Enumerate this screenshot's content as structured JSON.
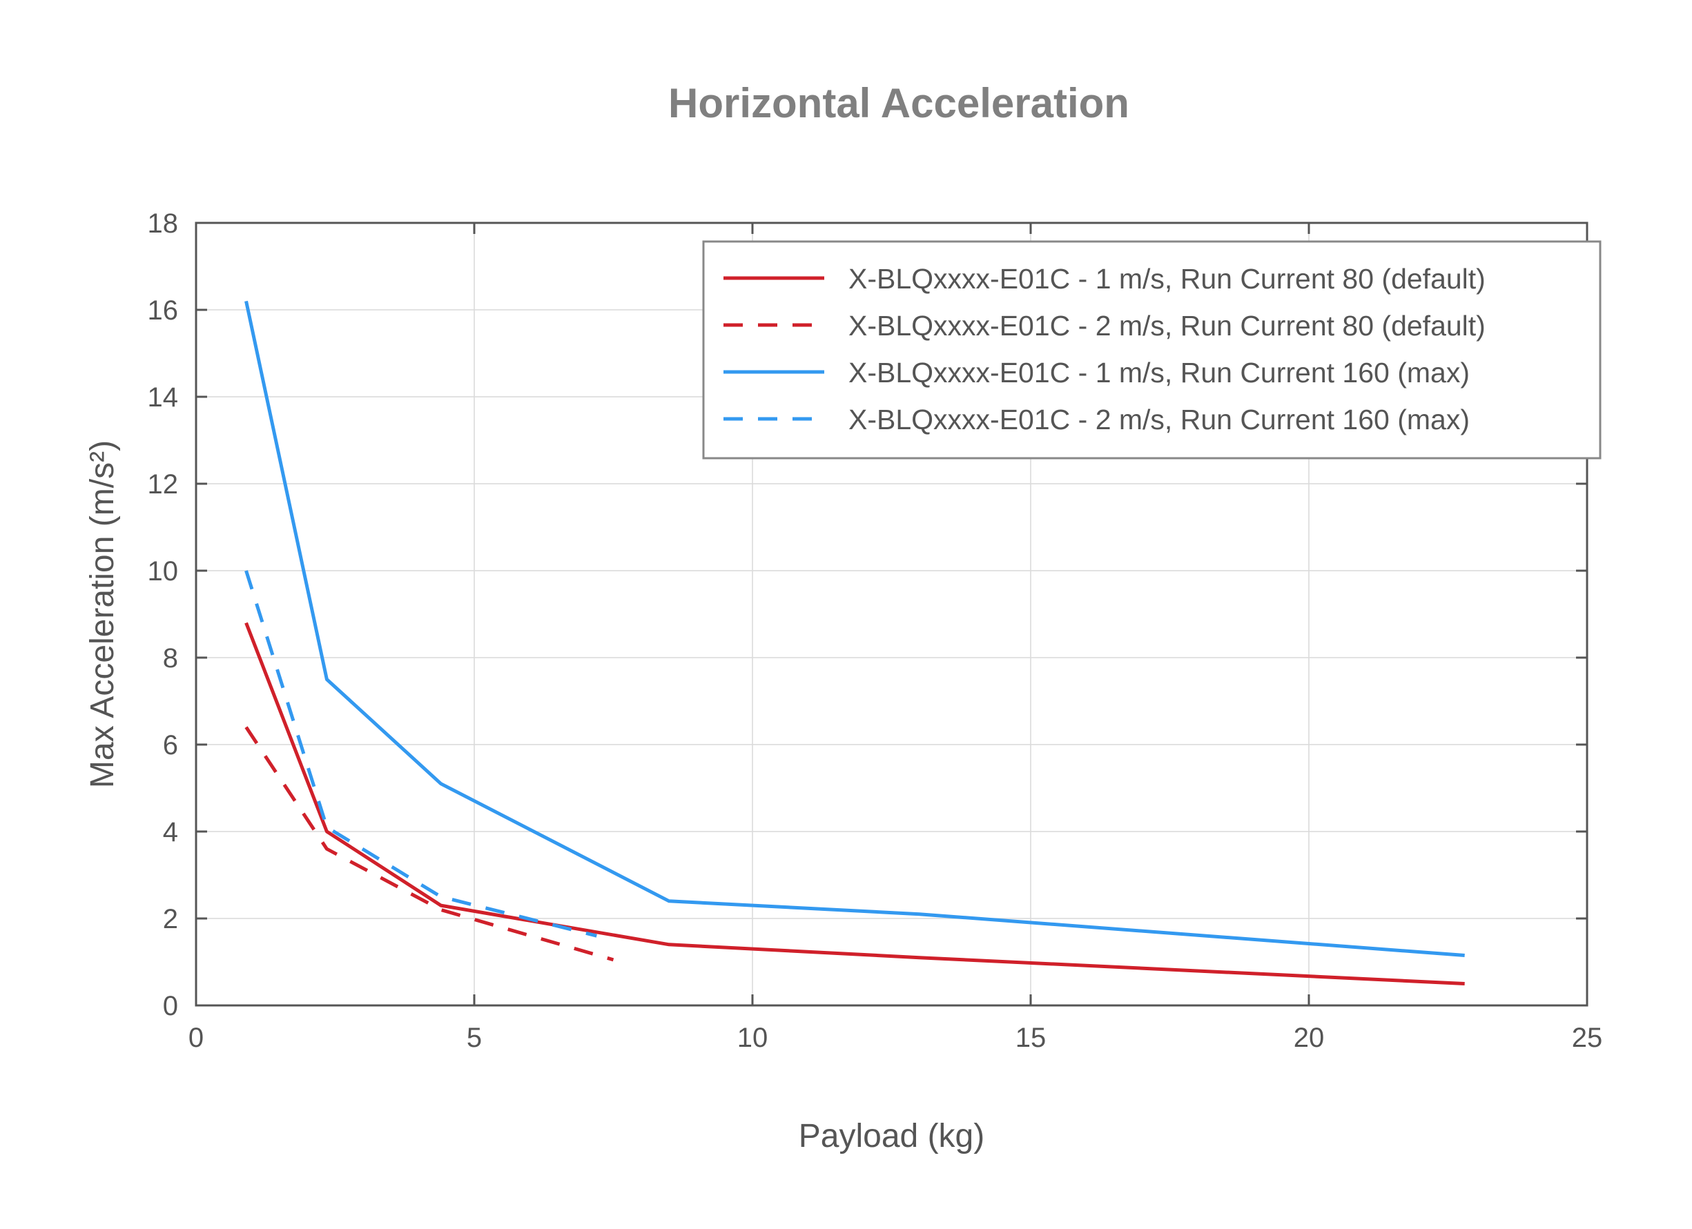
{
  "chart_data": {
    "type": "line",
    "title": "Horizontal Acceleration",
    "xlabel": "Payload (kg)",
    "ylabel": "Max Acceleration (m/s²)",
    "xlim": [
      0,
      25
    ],
    "ylim": [
      0,
      18
    ],
    "xticks": [
      0,
      5,
      10,
      15,
      20,
      25
    ],
    "yticks": [
      0,
      2,
      4,
      6,
      8,
      10,
      12,
      14,
      16,
      18
    ],
    "grid": true,
    "legend_position": "upper right",
    "series": [
      {
        "name": "X-BLQxxxx-E01C - 1 m/s, Run Current 80 (default)",
        "color": "#d0202a",
        "dash": "solid",
        "x": [
          0.9,
          2.35,
          4.4,
          8.5,
          13.0,
          22.8
        ],
        "y": [
          8.8,
          4.0,
          2.3,
          1.4,
          1.1,
          0.5
        ]
      },
      {
        "name": "X-BLQxxxx-E01C - 2 m/s, Run Current 80 (default)",
        "color": "#d0202a",
        "dash": "dashed",
        "x": [
          0.9,
          2.35,
          4.4,
          7.5
        ],
        "y": [
          6.4,
          3.6,
          2.2,
          1.05
        ]
      },
      {
        "name": "X-BLQxxxx-E01C - 1 m/s, Run Current 160 (max)",
        "color": "#3399f0",
        "dash": "solid",
        "x": [
          0.9,
          2.35,
          4.4,
          8.5,
          13.0,
          22.8
        ],
        "y": [
          16.2,
          7.5,
          5.1,
          2.4,
          2.1,
          1.15
        ]
      },
      {
        "name": "X-BLQxxxx-E01C - 2 m/s, Run Current 160 (max)",
        "color": "#3399f0",
        "dash": "dashed",
        "x": [
          0.9,
          2.35,
          4.4,
          7.2
        ],
        "y": [
          10.0,
          4.1,
          2.5,
          1.6
        ]
      }
    ]
  }
}
